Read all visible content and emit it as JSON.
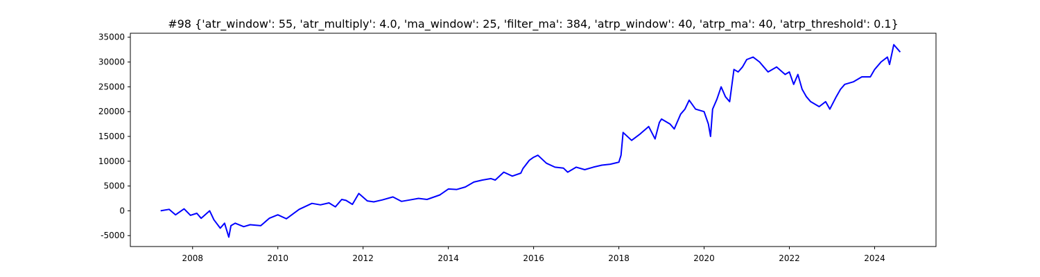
{
  "chart_data": {
    "type": "line",
    "title": "#98 {'atr_window': 55, 'atr_multiply': 4.0, 'ma_window': 25, 'filter_ma': 384, 'atrp_window': 40, 'atrp_ma': 40, 'atrp_threshold': 0.1}",
    "xlabel": "",
    "ylabel": "",
    "xlim": [
      2006.54,
      2025.44
    ],
    "ylim": [
      -7200,
      35800
    ],
    "x_ticks": [
      "2008",
      "2010",
      "2012",
      "2014",
      "2016",
      "2018",
      "2020",
      "2022",
      "2024"
    ],
    "y_ticks": [
      "-5000",
      "0",
      "5000",
      "10000",
      "15000",
      "20000",
      "25000",
      "30000",
      "35000"
    ],
    "grid": false,
    "legend": "none",
    "series": [
      {
        "color": "#0000ff",
        "x": [
          2007.25,
          2007.45,
          2007.6,
          2007.8,
          2007.95,
          2008.1,
          2008.2,
          2008.4,
          2008.5,
          2008.65,
          2008.75,
          2008.85,
          2008.9,
          2009.0,
          2009.2,
          2009.35,
          2009.6,
          2009.8,
          2010.0,
          2010.2,
          2010.5,
          2010.8,
          2011.0,
          2011.2,
          2011.35,
          2011.5,
          2011.6,
          2011.75,
          2011.9,
          2012.1,
          2012.25,
          2012.45,
          2012.7,
          2012.9,
          2013.1,
          2013.3,
          2013.5,
          2013.8,
          2014.0,
          2014.2,
          2014.4,
          2014.6,
          2014.8,
          2015.0,
          2015.1,
          2015.3,
          2015.5,
          2015.7,
          2015.75,
          2015.9,
          2016.0,
          2016.1,
          2016.3,
          2016.5,
          2016.7,
          2016.8,
          2017.0,
          2017.2,
          2017.4,
          2017.6,
          2017.8,
          2018.0,
          2018.05,
          2018.1,
          2018.3,
          2018.5,
          2018.7,
          2018.85,
          2018.95,
          2019.0,
          2019.2,
          2019.3,
          2019.45,
          2019.55,
          2019.65,
          2019.8,
          2020.0,
          2020.1,
          2020.15,
          2020.2,
          2020.3,
          2020.4,
          2020.5,
          2020.6,
          2020.7,
          2020.8,
          2020.9,
          2021.0,
          2021.15,
          2021.3,
          2021.4,
          2021.5,
          2021.7,
          2021.9,
          2022.0,
          2022.1,
          2022.2,
          2022.3,
          2022.4,
          2022.5,
          2022.7,
          2022.85,
          2022.95,
          2023.1,
          2023.2,
          2023.3,
          2023.5,
          2023.7,
          2023.9,
          2024.0,
          2024.15,
          2024.3,
          2024.35,
          2024.45,
          2024.6
        ],
        "values": [
          0,
          300,
          -800,
          400,
          -900,
          -500,
          -1500,
          0,
          -1800,
          -3500,
          -2500,
          -5300,
          -3000,
          -2500,
          -3200,
          -2800,
          -3000,
          -1500,
          -800,
          -1600,
          300,
          1500,
          1200,
          1600,
          800,
          2300,
          2100,
          1300,
          3500,
          2000,
          1800,
          2200,
          2800,
          1900,
          2200,
          2500,
          2300,
          3200,
          4400,
          4300,
          4800,
          5800,
          6200,
          6500,
          6200,
          7800,
          7000,
          7600,
          8500,
          10200,
          10800,
          11200,
          9600,
          8800,
          8600,
          7800,
          8800,
          8300,
          8800,
          9200,
          9400,
          9800,
          11200,
          15800,
          14200,
          15500,
          17000,
          14500,
          17800,
          18500,
          17500,
          16500,
          19500,
          20500,
          22300,
          20500,
          20000,
          17500,
          15000,
          20500,
          22500,
          25000,
          23000,
          22000,
          28500,
          28000,
          29000,
          30500,
          31000,
          30000,
          29000,
          28000,
          29000,
          27500,
          28000,
          25500,
          27500,
          24500,
          23000,
          22000,
          21000,
          22000,
          20500,
          23000,
          24500,
          25500,
          26000,
          27000,
          27000,
          28500,
          30000,
          31000,
          29500,
          33500,
          32000
        ]
      }
    ]
  }
}
